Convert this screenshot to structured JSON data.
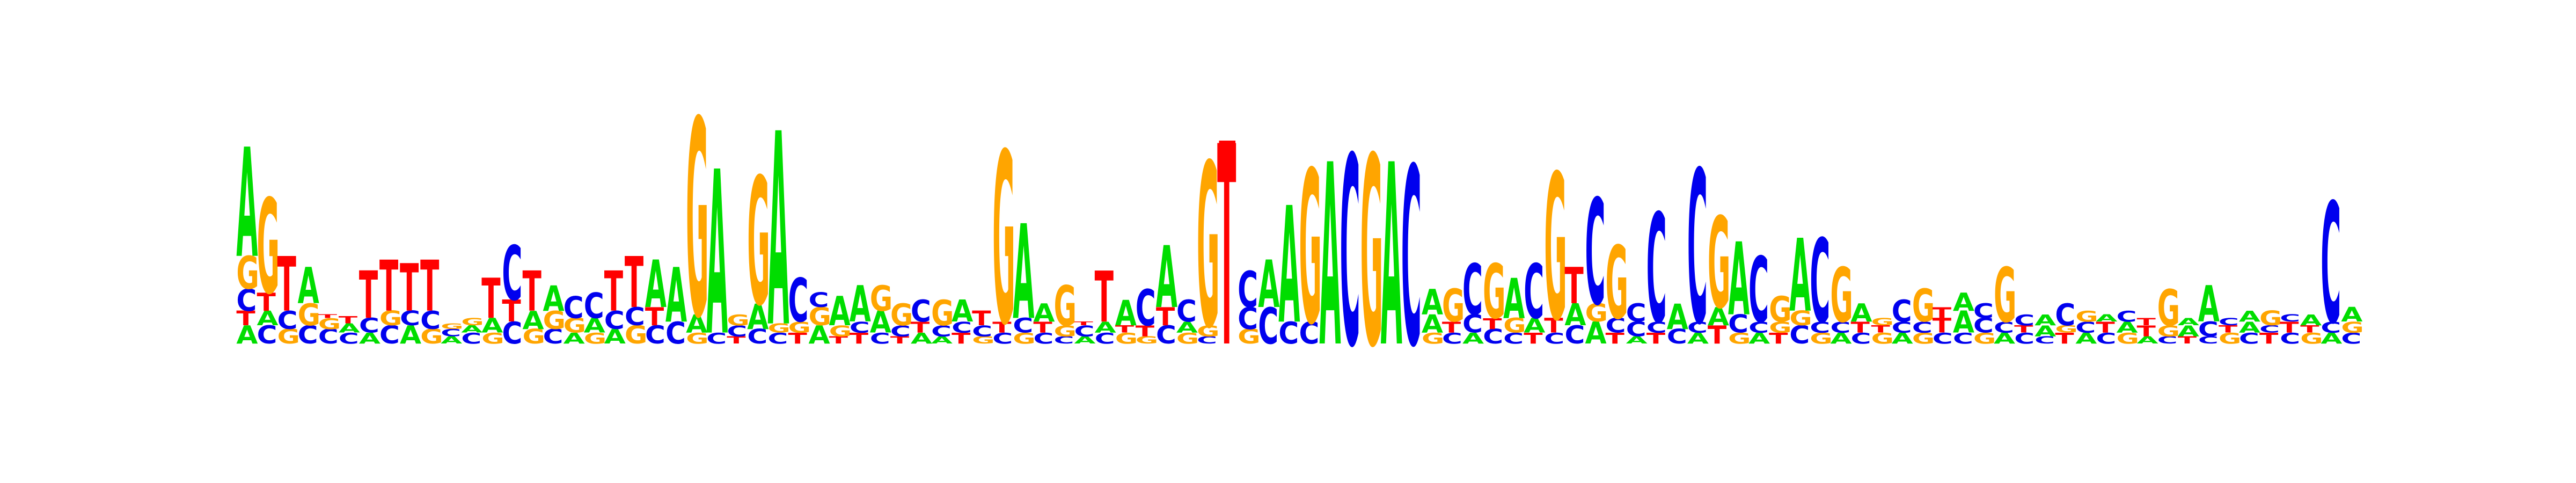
{
  "diagram": {
    "type": "sequence-logo",
    "alphabet": [
      "A",
      "C",
      "G",
      "T"
    ],
    "colors": {
      "A": "#00dd00",
      "C": "#0000ee",
      "G": "#ffa500",
      "T": "#ff0000"
    },
    "columns": [
      [
        [
          "A",
          0.1
        ],
        [
          "T",
          0.08
        ],
        [
          "C",
          0.12
        ],
        [
          "G",
          0.18
        ],
        [
          "A",
          0.6
        ]
      ],
      [
        [
          "C",
          0.1
        ],
        [
          "A",
          0.08
        ],
        [
          "T",
          0.1
        ],
        [
          "G",
          0.52
        ]
      ],
      [
        [
          "G",
          0.08
        ],
        [
          "C",
          0.1
        ],
        [
          "T",
          0.3
        ]
      ],
      [
        [
          "C",
          0.1
        ],
        [
          "G",
          0.12
        ],
        [
          "A",
          0.2
        ]
      ],
      [
        [
          "C",
          0.08
        ],
        [
          "G",
          0.06
        ],
        [
          "T",
          0.02
        ]
      ],
      [
        [
          "C",
          0.06
        ],
        [
          "A",
          0.05
        ],
        [
          "T",
          0.04
        ]
      ],
      [
        [
          "A",
          0.06
        ],
        [
          "C",
          0.08
        ],
        [
          "T",
          0.26
        ]
      ],
      [
        [
          "C",
          0.1
        ],
        [
          "G",
          0.08
        ],
        [
          "T",
          0.28
        ]
      ],
      [
        [
          "A",
          0.1
        ],
        [
          "C",
          0.08
        ],
        [
          "T",
          0.26
        ]
      ],
      [
        [
          "G",
          0.08
        ],
        [
          "C",
          0.1
        ],
        [
          "T",
          0.28
        ]
      ],
      [
        [
          "A",
          0.04
        ],
        [
          "C",
          0.04
        ],
        [
          "G",
          0.03
        ]
      ],
      [
        [
          "C",
          0.06
        ],
        [
          "A",
          0.04
        ],
        [
          "G",
          0.04
        ]
      ],
      [
        [
          "G",
          0.06
        ],
        [
          "A",
          0.08
        ],
        [
          "T",
          0.22
        ]
      ],
      [
        [
          "C",
          0.12
        ],
        [
          "T",
          0.12
        ],
        [
          "C",
          0.3
        ]
      ],
      [
        [
          "G",
          0.08
        ],
        [
          "A",
          0.1
        ],
        [
          "T",
          0.22
        ]
      ],
      [
        [
          "C",
          0.08
        ],
        [
          "G",
          0.1
        ],
        [
          "A",
          0.14
        ]
      ],
      [
        [
          "A",
          0.06
        ],
        [
          "G",
          0.08
        ],
        [
          "C",
          0.12
        ]
      ],
      [
        [
          "G",
          0.06
        ],
        [
          "A",
          0.08
        ],
        [
          "C",
          0.14
        ]
      ],
      [
        [
          "A",
          0.08
        ],
        [
          "C",
          0.1
        ],
        [
          "T",
          0.22
        ]
      ],
      [
        [
          "G",
          0.1
        ],
        [
          "C",
          0.1
        ],
        [
          "T",
          0.28
        ]
      ],
      [
        [
          "C",
          0.1
        ],
        [
          "T",
          0.1
        ],
        [
          "A",
          0.26
        ]
      ],
      [
        [
          "C",
          0.12
        ],
        [
          "A",
          0.3
        ]
      ],
      [
        [
          "G",
          0.06
        ],
        [
          "A",
          0.1
        ],
        [
          "G",
          1.08
        ]
      ],
      [
        [
          "C",
          0.06
        ],
        [
          "A",
          0.9
        ]
      ],
      [
        [
          "T",
          0.04
        ],
        [
          "C",
          0.06
        ],
        [
          "G",
          0.06
        ]
      ],
      [
        [
          "C",
          0.08
        ],
        [
          "A",
          0.14
        ],
        [
          "G",
          0.7
        ]
      ],
      [
        [
          "C",
          0.06
        ],
        [
          "G",
          0.05
        ],
        [
          "A",
          1.06
        ]
      ],
      [
        [
          "T",
          0.06
        ],
        [
          "G",
          0.06
        ],
        [
          "C",
          0.24
        ]
      ],
      [
        [
          "A",
          0.1
        ],
        [
          "G",
          0.1
        ],
        [
          "C",
          0.08
        ]
      ],
      [
        [
          "T",
          0.04
        ],
        [
          "G",
          0.06
        ],
        [
          "A",
          0.16
        ]
      ],
      [
        [
          "T",
          0.06
        ],
        [
          "C",
          0.06
        ],
        [
          "A",
          0.2
        ]
      ],
      [
        [
          "C",
          0.06
        ],
        [
          "A",
          0.12
        ],
        [
          "G",
          0.14
        ]
      ],
      [
        [
          "T",
          0.04
        ],
        [
          "C",
          0.06
        ],
        [
          "G",
          0.12
        ]
      ],
      [
        [
          "A",
          0.06
        ],
        [
          "T",
          0.06
        ],
        [
          "C",
          0.12
        ]
      ],
      [
        [
          "A",
          0.04
        ],
        [
          "C",
          0.06
        ],
        [
          "G",
          0.14
        ]
      ],
      [
        [
          "T",
          0.06
        ],
        [
          "C",
          0.06
        ],
        [
          "A",
          0.12
        ]
      ],
      [
        [
          "G",
          0.04
        ],
        [
          "C",
          0.06
        ],
        [
          "T",
          0.08
        ]
      ],
      [
        [
          "C",
          0.06
        ],
        [
          "T",
          0.06
        ],
        [
          "G",
          0.94
        ]
      ],
      [
        [
          "G",
          0.06
        ],
        [
          "C",
          0.08
        ],
        [
          "A",
          0.52
        ]
      ],
      [
        [
          "C",
          0.06
        ],
        [
          "T",
          0.06
        ],
        [
          "A",
          0.1
        ]
      ],
      [
        [
          "C",
          0.04
        ],
        [
          "G",
          0.06
        ],
        [
          "G",
          0.22
        ]
      ],
      [
        [
          "A",
          0.04
        ],
        [
          "C",
          0.06
        ],
        [
          "T",
          0.02
        ]
      ],
      [
        [
          "C",
          0.06
        ],
        [
          "A",
          0.06
        ],
        [
          "T",
          0.28
        ]
      ],
      [
        [
          "G",
          0.06
        ],
        [
          "T",
          0.04
        ],
        [
          "A",
          0.14
        ]
      ],
      [
        [
          "G",
          0.04
        ],
        [
          "T",
          0.06
        ],
        [
          "C",
          0.2
        ]
      ],
      [
        [
          "C",
          0.1
        ],
        [
          "T",
          0.1
        ],
        [
          "A",
          0.34
        ]
      ],
      [
        [
          "G",
          0.06
        ],
        [
          "A",
          0.06
        ],
        [
          "C",
          0.12
        ]
      ],
      [
        [
          "C",
          0.04
        ],
        [
          "G",
          0.06
        ],
        [
          "G",
          0.9
        ]
      ],
      [
        [
          "T",
          1.1
        ]
      ],
      [
        [
          "G",
          0.08
        ],
        [
          "C",
          0.12
        ],
        [
          "C",
          0.2
        ]
      ],
      [
        [
          "C",
          0.2
        ],
        [
          "A",
          0.26
        ]
      ],
      [
        [
          "C",
          0.12
        ],
        [
          "A",
          0.64
        ]
      ],
      [
        [
          "C",
          0.12
        ],
        [
          "G",
          0.84
        ]
      ],
      [
        [
          "A",
          1.0
        ]
      ],
      [
        [
          "C",
          1.04
        ]
      ],
      [
        [
          "G",
          1.04
        ]
      ],
      [
        [
          "A",
          1.0
        ]
      ],
      [
        [
          "C",
          0.98
        ]
      ],
      [
        [
          "G",
          0.06
        ],
        [
          "A",
          0.1
        ],
        [
          "A",
          0.14
        ]
      ],
      [
        [
          "C",
          0.06
        ],
        [
          "T",
          0.06
        ],
        [
          "G",
          0.18
        ]
      ],
      [
        [
          "A",
          0.06
        ],
        [
          "C",
          0.1
        ],
        [
          "C",
          0.28
        ]
      ],
      [
        [
          "C",
          0.08
        ],
        [
          "T",
          0.06
        ],
        [
          "G",
          0.3
        ]
      ],
      [
        [
          "C",
          0.06
        ],
        [
          "G",
          0.08
        ],
        [
          "A",
          0.22
        ]
      ],
      [
        [
          "T",
          0.06
        ],
        [
          "A",
          0.08
        ],
        [
          "C",
          0.3
        ]
      ],
      [
        [
          "C",
          0.06
        ],
        [
          "T",
          0.08
        ],
        [
          "G",
          0.8
        ]
      ],
      [
        [
          "C",
          0.1
        ],
        [
          "A",
          0.12
        ],
        [
          "T",
          0.2
        ]
      ],
      [
        [
          "A",
          0.12
        ],
        [
          "G",
          0.1
        ],
        [
          "C",
          0.58
        ]
      ],
      [
        [
          "T",
          0.06
        ],
        [
          "C",
          0.08
        ],
        [
          "G",
          0.4
        ]
      ],
      [
        [
          "A",
          0.04
        ],
        [
          "C",
          0.08
        ],
        [
          "C",
          0.1
        ]
      ],
      [
        [
          "T",
          0.06
        ],
        [
          "C",
          0.06
        ],
        [
          "C",
          0.6
        ]
      ],
      [
        [
          "C",
          0.08
        ],
        [
          "A",
          0.14
        ]
      ],
      [
        [
          "A",
          0.06
        ],
        [
          "C",
          0.06
        ],
        [
          "C",
          0.84
        ]
      ],
      [
        [
          "T",
          0.1
        ],
        [
          "A",
          0.1
        ],
        [
          "G",
          0.5
        ]
      ],
      [
        [
          "G",
          0.06
        ],
        [
          "C",
          0.1
        ],
        [
          "A",
          0.4
        ]
      ],
      [
        [
          "A",
          0.06
        ],
        [
          "C",
          0.06
        ],
        [
          "C",
          0.36
        ]
      ],
      [
        [
          "T",
          0.06
        ],
        [
          "G",
          0.06
        ],
        [
          "G",
          0.14
        ]
      ],
      [
        [
          "C",
          0.1
        ],
        [
          "G",
          0.08
        ],
        [
          "A",
          0.4
        ]
      ],
      [
        [
          "G",
          0.06
        ],
        [
          "C",
          0.06
        ],
        [
          "C",
          0.46
        ]
      ],
      [
        [
          "A",
          0.06
        ],
        [
          "C",
          0.06
        ],
        [
          "G",
          0.3
        ]
      ],
      [
        [
          "C",
          0.06
        ],
        [
          "T",
          0.06
        ],
        [
          "A",
          0.1
        ]
      ],
      [
        [
          "G",
          0.06
        ],
        [
          "T",
          0.04
        ],
        [
          "G",
          0.04
        ]
      ],
      [
        [
          "A",
          0.06
        ],
        [
          "C",
          0.06
        ],
        [
          "C",
          0.12
        ]
      ],
      [
        [
          "G",
          0.06
        ],
        [
          "C",
          0.06
        ],
        [
          "G",
          0.18
        ]
      ],
      [
        [
          "C",
          0.06
        ],
        [
          "T",
          0.08
        ],
        [
          "T",
          0.06
        ]
      ],
      [
        [
          "C",
          0.06
        ],
        [
          "A",
          0.12
        ],
        [
          "A",
          0.1
        ]
      ],
      [
        [
          "G",
          0.06
        ],
        [
          "C",
          0.08
        ],
        [
          "C",
          0.08
        ]
      ],
      [
        [
          "A",
          0.06
        ],
        [
          "C",
          0.06
        ],
        [
          "G",
          0.3
        ]
      ],
      [
        [
          "C",
          0.06
        ],
        [
          "T",
          0.04
        ],
        [
          "C",
          0.06
        ]
      ],
      [
        [
          "C",
          0.04
        ],
        [
          "A",
          0.06
        ],
        [
          "A",
          0.06
        ]
      ],
      [
        [
          "T",
          0.06
        ],
        [
          "G",
          0.04
        ],
        [
          "C",
          0.12
        ]
      ],
      [
        [
          "A",
          0.06
        ],
        [
          "C",
          0.06
        ],
        [
          "G",
          0.06
        ]
      ],
      [
        [
          "C",
          0.06
        ],
        [
          "T",
          0.06
        ],
        [
          "A",
          0.04
        ]
      ],
      [
        [
          "G",
          0.06
        ],
        [
          "A",
          0.06
        ],
        [
          "C",
          0.06
        ]
      ],
      [
        [
          "A",
          0.04
        ],
        [
          "T",
          0.06
        ],
        [
          "T",
          0.04
        ]
      ],
      [
        [
          "C",
          0.04
        ],
        [
          "G",
          0.06
        ],
        [
          "G",
          0.2
        ]
      ],
      [
        [
          "T",
          0.04
        ],
        [
          "A",
          0.06
        ],
        [
          "A",
          0.04
        ]
      ],
      [
        [
          "C",
          0.04
        ],
        [
          "C",
          0.08
        ],
        [
          "A",
          0.2
        ]
      ],
      [
        [
          "G",
          0.06
        ],
        [
          "T",
          0.04
        ],
        [
          "C",
          0.04
        ]
      ],
      [
        [
          "C",
          0.06
        ],
        [
          "A",
          0.06
        ],
        [
          "A",
          0.06
        ]
      ],
      [
        [
          "T",
          0.06
        ],
        [
          "C",
          0.04
        ],
        [
          "G",
          0.08
        ]
      ],
      [
        [
          "C",
          0.06
        ],
        [
          "T",
          0.06
        ],
        [
          "C",
          0.04
        ]
      ],
      [
        [
          "G",
          0.06
        ],
        [
          "T",
          0.04
        ],
        [
          "A",
          0.06
        ]
      ],
      [
        [
          "A",
          0.06
        ],
        [
          "C",
          0.06
        ],
        [
          "C",
          0.66
        ]
      ],
      [
        [
          "C",
          0.06
        ],
        [
          "G",
          0.06
        ],
        [
          "A",
          0.08
        ]
      ]
    ]
  }
}
